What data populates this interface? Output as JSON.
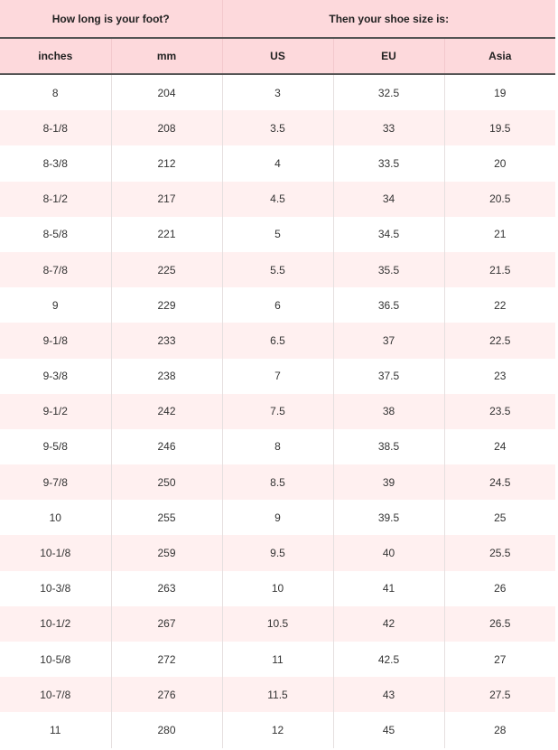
{
  "header": {
    "group_left": "How long is your foot?",
    "group_right": "Then your shoe size is:",
    "columns": [
      "inches",
      "mm",
      "US",
      "EU",
      "Asia"
    ]
  },
  "rows": [
    [
      "8",
      "204",
      "3",
      "32.5",
      "19"
    ],
    [
      "8-1/8",
      "208",
      "3.5",
      "33",
      "19.5"
    ],
    [
      "8-3/8",
      "212",
      "4",
      "33.5",
      "20"
    ],
    [
      "8-1/2",
      "217",
      "4.5",
      "34",
      "20.5"
    ],
    [
      "8-5/8",
      "221",
      "5",
      "34.5",
      "21"
    ],
    [
      "8-7/8",
      "225",
      "5.5",
      "35.5",
      "21.5"
    ],
    [
      "9",
      "229",
      "6",
      "36.5",
      "22"
    ],
    [
      "9-1/8",
      "233",
      "6.5",
      "37",
      "22.5"
    ],
    [
      "9-3/8",
      "238",
      "7",
      "37.5",
      "23"
    ],
    [
      "9-1/2",
      "242",
      "7.5",
      "38",
      "23.5"
    ],
    [
      "9-5/8",
      "246",
      "8",
      "38.5",
      "24"
    ],
    [
      "9-7/8",
      "250",
      "8.5",
      "39",
      "24.5"
    ],
    [
      "10",
      "255",
      "9",
      "39.5",
      "25"
    ],
    [
      "10-1/8",
      "259",
      "9.5",
      "40",
      "25.5"
    ],
    [
      "10-3/8",
      "263",
      "10",
      "41",
      "26"
    ],
    [
      "10-1/2",
      "267",
      "10.5",
      "42",
      "26.5"
    ],
    [
      "10-5/8",
      "272",
      "11",
      "42.5",
      "27"
    ],
    [
      "10-7/8",
      "276",
      "11.5",
      "43",
      "27.5"
    ],
    [
      "11",
      "280",
      "12",
      "45",
      "28"
    ]
  ],
  "colors": {
    "header_bg": "#fdd9dc",
    "stripe_bg": "#fff0f0"
  }
}
